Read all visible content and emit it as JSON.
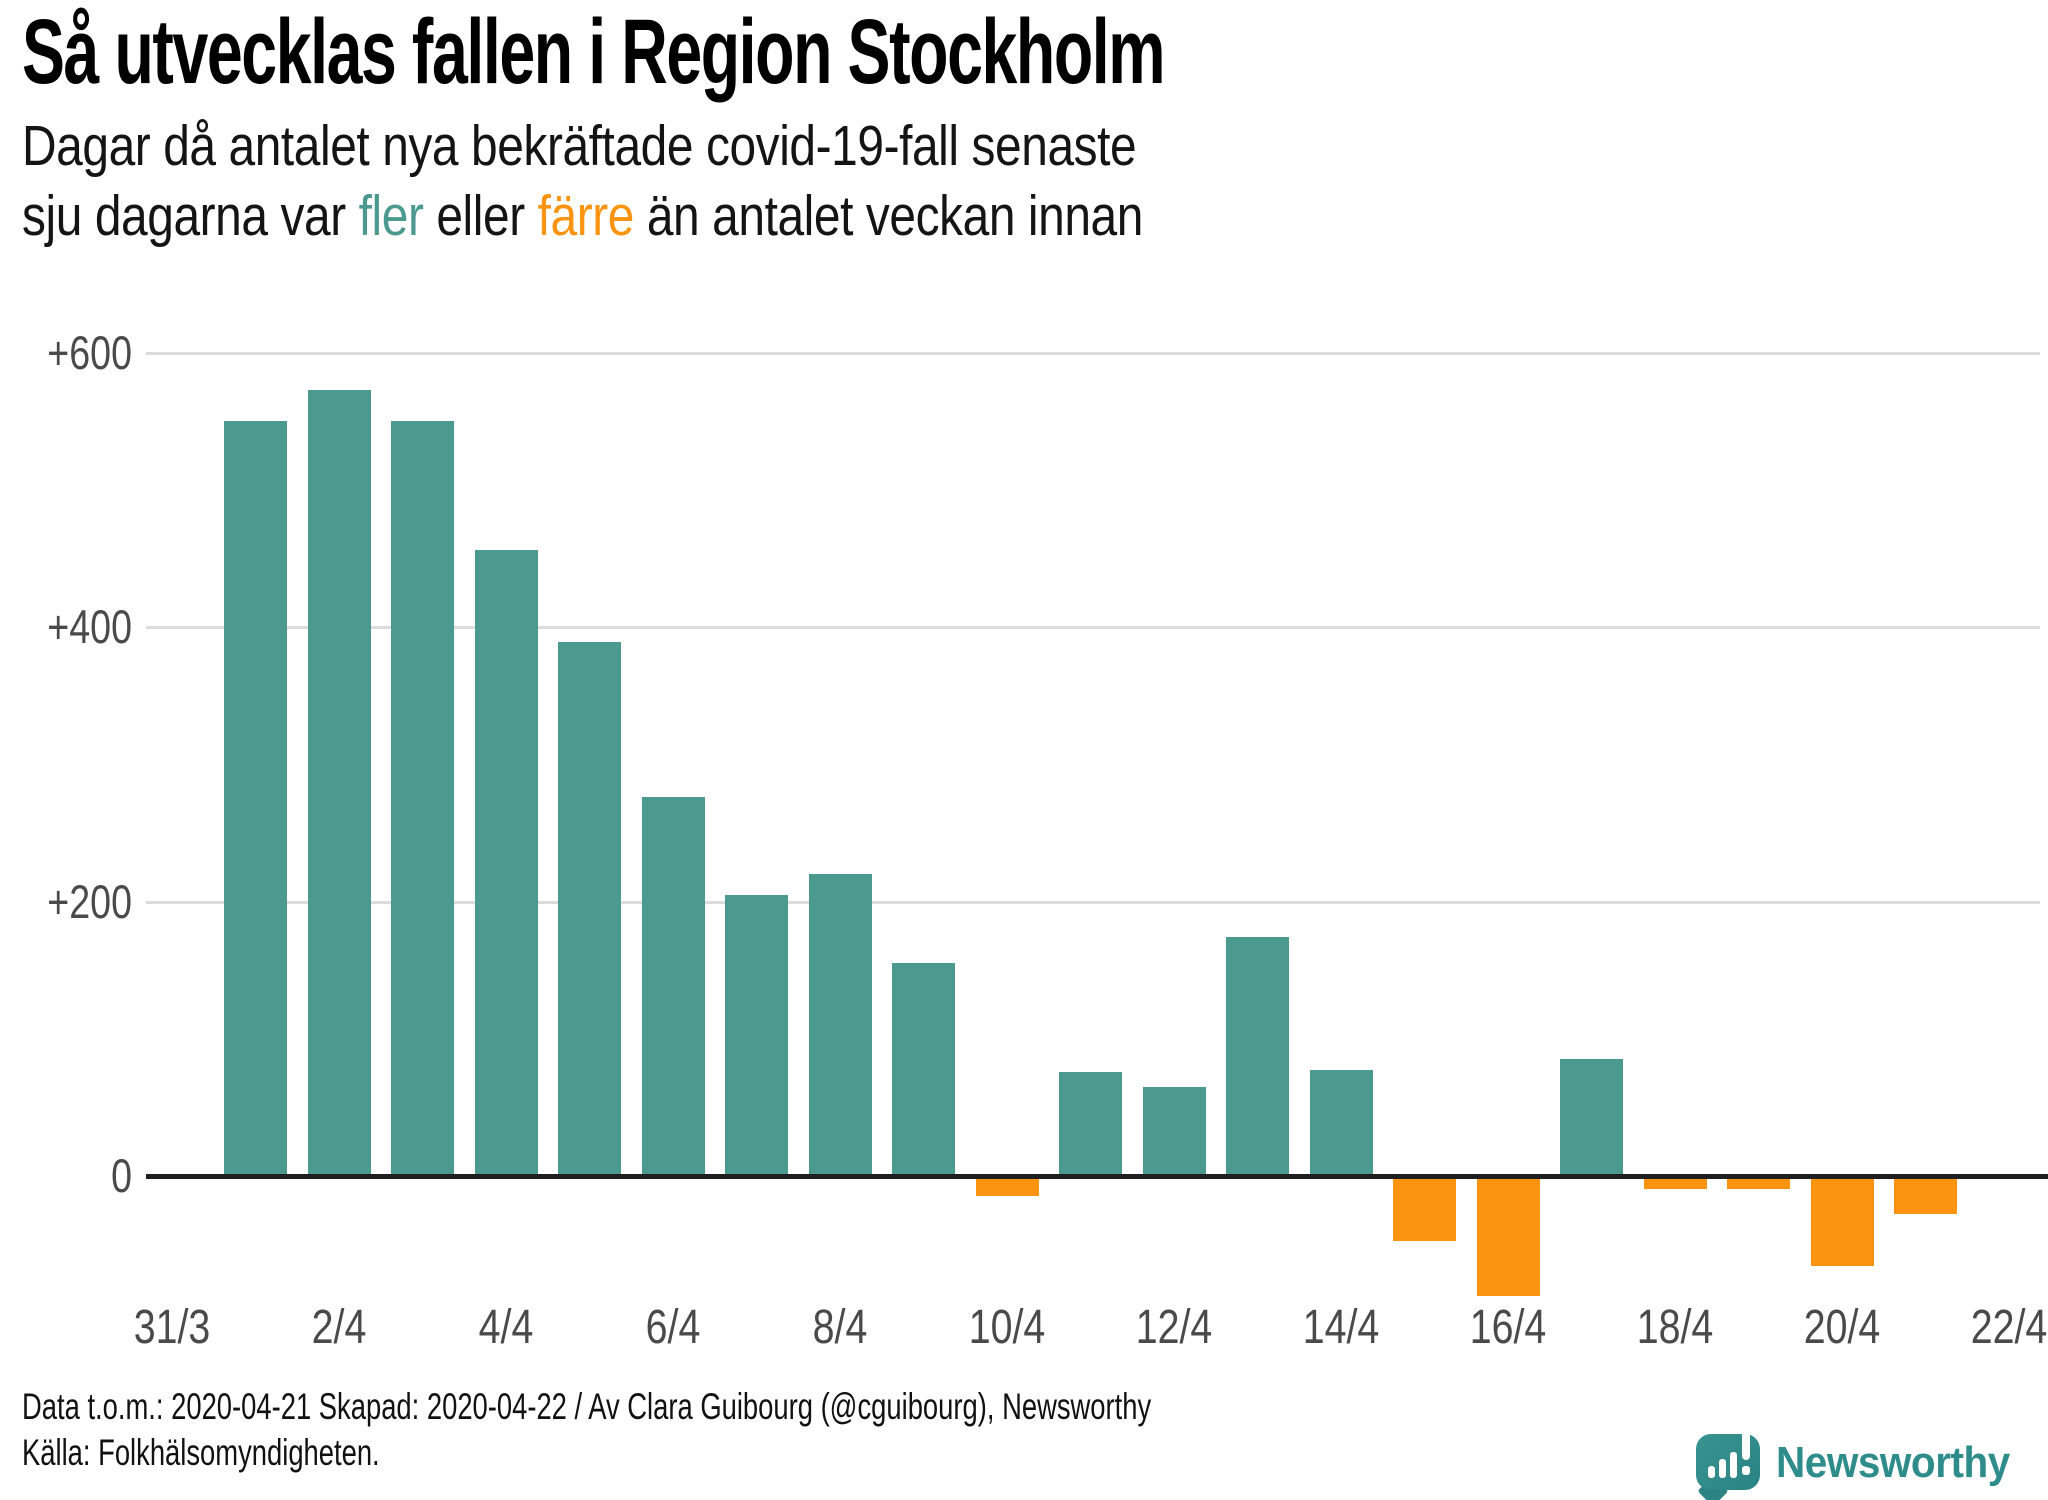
{
  "title": "Så utvecklas fallen i Region Stockholm",
  "subtitle": {
    "line1": "Dagar då antalet nya bekräftade covid-19-fall senaste",
    "line2_parts": {
      "pre": "sju dagarna var ",
      "fler": "fler",
      "mid": " eller ",
      "farre": "färre",
      "post": " än antalet veckan innan"
    }
  },
  "footer": {
    "line1": "Data t.o.m.: 2020-04-21 Skapad: 2020-04-22 / Av Clara Guibourg (@cguibourg), Newsworthy",
    "line2": "Källa: Folkhälsomyndigheten."
  },
  "logo": {
    "wordmark": "Newsworthy",
    "icon": "newsworthy-speech-bubble-bar-chart-icon",
    "color": "#2E8C8A"
  },
  "colors": {
    "positive_teal": "#4C9A8F",
    "negative_orange": "#FB9410",
    "gridline": "#DCDCDC",
    "zero_axis": "#1F1F1F",
    "tick_text": "#4A4A4A"
  },
  "chart_data": {
    "type": "bar",
    "title": "Så utvecklas fallen i Region Stockholm",
    "subtitle": "Dagar då antalet nya bekräftade covid-19-fall senaste sju dagarna var fler eller färre än antalet veckan innan",
    "categories": [
      "1/4",
      "2/4",
      "3/4",
      "4/4",
      "5/4",
      "6/4",
      "7/4",
      "8/4",
      "9/4",
      "10/4",
      "11/4",
      "12/4",
      "13/4",
      "14/4",
      "15/4",
      "16/4",
      "17/4",
      "18/4",
      "19/4",
      "20/4",
      "21/4"
    ],
    "values": [
      550,
      573,
      550,
      456,
      389,
      276,
      205,
      220,
      155,
      -13,
      76,
      65,
      174,
      77,
      -46,
      -86,
      85,
      -8,
      -8,
      -64,
      -26
    ],
    "positive_color": "#4C9A8F",
    "negative_color": "#FB9410",
    "legend": [
      {
        "label": "fler",
        "color": "#4C9A8F"
      },
      {
        "label": "färre",
        "color": "#FB9410"
      }
    ],
    "xlabel": "",
    "ylabel": "",
    "xticks": [
      "31/3",
      "2/4",
      "4/4",
      "6/4",
      "8/4",
      "10/4",
      "12/4",
      "14/4",
      "16/4",
      "18/4",
      "20/4",
      "22/4"
    ],
    "yticks": [
      {
        "label": "0",
        "value": 0
      },
      {
        "label": "+200",
        "value": 200
      },
      {
        "label": "+400",
        "value": 400
      },
      {
        "label": "+600",
        "value": 600
      }
    ],
    "ylim": [
      -100,
      640
    ],
    "grid": "horizontal"
  }
}
